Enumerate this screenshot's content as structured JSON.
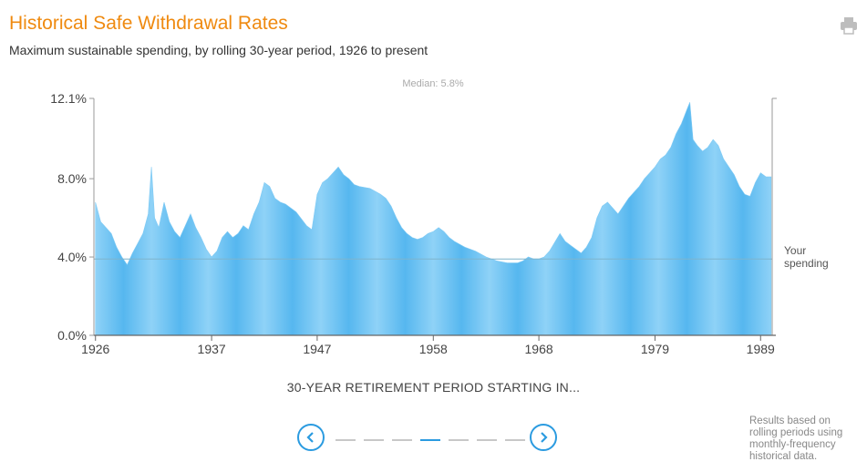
{
  "header": {
    "title": "Historical Safe Withdrawal Rates",
    "subtitle": "Maximum sustainable spending, by rolling 30-year period, 1926 to present",
    "print_icon": "printer-icon"
  },
  "chart_data": {
    "type": "area",
    "title": "Historical Safe Withdrawal Rates",
    "subtitle": "Maximum sustainable spending, by rolling 30-year period, 1926 to present",
    "xlabel": "30-YEAR RETIREMENT PERIOD STARTING IN...",
    "ylabel": "",
    "ylim": [
      0,
      12.1
    ],
    "xlim": [
      1925.85,
      1990.1
    ],
    "ytick_labels": [
      "0.0%",
      "4.0%",
      "8.0%",
      "12.1%"
    ],
    "yticks": [
      0,
      4,
      8,
      12.1
    ],
    "xtick_labels": [
      "1926",
      "1937",
      "1947",
      "1958",
      "1968",
      "1979",
      "1989"
    ],
    "xticks": [
      1926,
      1937,
      1947,
      1958,
      1968,
      1979,
      1989
    ],
    "grid": false,
    "median_label": "Median: 5.8%",
    "median_value": 5.8,
    "reference_line": {
      "value": 3.9,
      "label_line1": "Your",
      "label_line2": "spending"
    },
    "series": [
      {
        "x": [
          1926.0,
          1926.5,
          1927.0,
          1927.5,
          1928.0,
          1928.5,
          1929.0,
          1929.5,
          1930.0,
          1930.5,
          1931.0,
          1931.3,
          1931.6,
          1932.0,
          1932.5,
          1933.0,
          1933.5,
          1934.0,
          1934.5,
          1935.0,
          1935.5,
          1936.0,
          1936.5,
          1937.0,
          1937.5,
          1938.0,
          1938.5,
          1939.0,
          1939.5,
          1940.0,
          1940.5,
          1941.0,
          1941.5,
          1942.0,
          1942.5,
          1943.0,
          1943.5,
          1944.0,
          1945.0,
          1946.0,
          1946.5,
          1947.0,
          1947.5,
          1948.0,
          1948.5,
          1949.0,
          1949.5,
          1950.0,
          1950.5,
          1951.0,
          1952.0,
          1953.0,
          1953.5,
          1954.0,
          1954.5,
          1955.0,
          1955.5,
          1956.0,
          1956.5,
          1957.0,
          1957.5,
          1958.0,
          1958.5,
          1959.0,
          1959.5,
          1960.0,
          1961.0,
          1962.0,
          1963.0,
          1964.0,
          1965.0,
          1966.0,
          1966.5,
          1967.0,
          1967.5,
          1968.0,
          1968.5,
          1969.0,
          1970.0,
          1970.5,
          1971.0,
          1971.5,
          1972.0,
          1972.5,
          1973.0,
          1973.5,
          1974.0,
          1974.5,
          1975.0,
          1975.5,
          1976.0,
          1976.5,
          1977.0,
          1977.5,
          1978.0,
          1978.5,
          1979.0,
          1979.5,
          1980.0,
          1980.5,
          1981.0,
          1981.5,
          1982.0,
          1982.3,
          1982.6,
          1983.0,
          1983.5,
          1984.0,
          1984.5,
          1985.0,
          1985.5,
          1986.0,
          1986.5,
          1987.0,
          1987.5,
          1988.0,
          1988.5,
          1989.0,
          1989.5,
          1990.0
        ],
        "values": [
          6.8,
          5.8,
          5.5,
          5.2,
          4.5,
          4.0,
          3.6,
          4.2,
          4.7,
          5.2,
          6.2,
          8.6,
          6.0,
          5.5,
          6.8,
          5.8,
          5.3,
          5.0,
          5.6,
          6.2,
          5.5,
          5.0,
          4.4,
          4.0,
          4.3,
          5.0,
          5.3,
          5.0,
          5.2,
          5.6,
          5.4,
          6.2,
          6.8,
          7.8,
          7.6,
          7.0,
          6.8,
          6.7,
          6.3,
          5.6,
          5.4,
          7.2,
          7.8,
          8.0,
          8.3,
          8.6,
          8.2,
          8.0,
          7.7,
          7.6,
          7.5,
          7.2,
          7.0,
          6.6,
          6.0,
          5.5,
          5.2,
          5.0,
          4.9,
          5.0,
          5.2,
          5.3,
          5.5,
          5.3,
          5.0,
          4.8,
          4.5,
          4.3,
          4.0,
          3.8,
          3.7,
          3.7,
          3.8,
          4.0,
          3.9,
          3.9,
          4.0,
          4.3,
          5.2,
          4.8,
          4.6,
          4.4,
          4.2,
          4.5,
          5.0,
          6.0,
          6.6,
          6.8,
          6.5,
          6.2,
          6.6,
          7.0,
          7.3,
          7.6,
          8.0,
          8.3,
          8.6,
          9.0,
          9.2,
          9.6,
          10.3,
          10.8,
          11.5,
          11.9,
          10.0,
          9.7,
          9.4,
          9.6,
          10.0,
          9.7,
          9.0,
          8.6,
          8.2,
          7.6,
          7.2,
          7.1,
          7.8,
          8.3,
          8.1,
          8.1
        ]
      }
    ]
  },
  "nav": {
    "prev_icon": "chevron-left-icon",
    "next_icon": "chevron-right-icon",
    "page_count": 7,
    "active_page": 4
  },
  "footnote": {
    "line1": "Results based on",
    "line2": "rolling periods using",
    "line3": "monthly-frequency",
    "line4": "historical data."
  },
  "colors": {
    "title": "#ef8a10",
    "area_light": "#8fd2f7",
    "area_dark": "#56b7ef",
    "accent": "#2b9be0",
    "axis": "#999999"
  }
}
